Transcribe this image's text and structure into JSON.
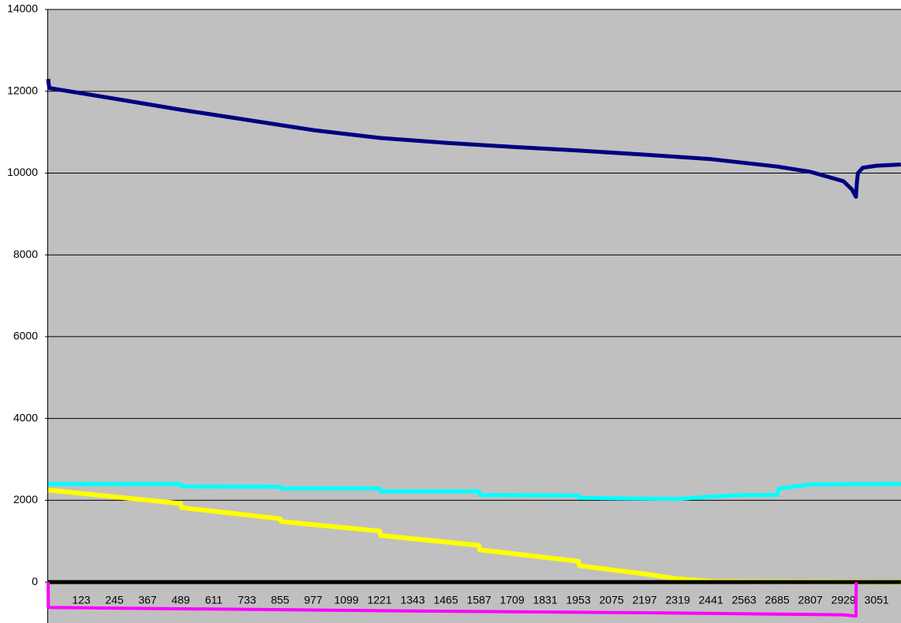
{
  "chart_data": {
    "type": "line",
    "background": "#c0c0c0",
    "grid": true,
    "xlim": [
      1,
      3140
    ],
    "ylim": [
      -1000,
      14000
    ],
    "yticks": [
      0,
      2000,
      4000,
      6000,
      8000,
      10000,
      12000,
      14000
    ],
    "xticks": [
      123,
      245,
      367,
      489,
      611,
      733,
      855,
      977,
      1099,
      1221,
      1343,
      1465,
      1587,
      1709,
      1831,
      1953,
      2075,
      2197,
      2319,
      2441,
      2563,
      2685,
      2807,
      2929,
      3051
    ],
    "series": [
      {
        "color": "#ffff00",
        "width": 6,
        "x": [
          1,
          489,
          492,
          855,
          860,
          1221,
          1225,
          1587,
          1590,
          1953,
          1957,
          2197,
          2319,
          2441,
          2560,
          3140
        ],
        "values": [
          2250,
          1920,
          1820,
          1550,
          1480,
          1250,
          1140,
          900,
          790,
          510,
          400,
          200,
          80,
          20,
          10,
          0
        ]
      },
      {
        "color": "#00ffff",
        "width": 5,
        "x": [
          1,
          489,
          495,
          855,
          860,
          1221,
          1225,
          1587,
          1590,
          1953,
          1957,
          2197,
          2319,
          2441,
          2563,
          2685,
          2690,
          2807,
          3140
        ],
        "values": [
          2400,
          2400,
          2340,
          2330,
          2290,
          2290,
          2220,
          2220,
          2130,
          2120,
          2060,
          2040,
          2030,
          2090,
          2130,
          2130,
          2280,
          2390,
          2400
        ]
      },
      {
        "color": "#000000",
        "width": 5,
        "x": [
          1,
          3140
        ],
        "values": [
          0,
          0
        ]
      },
      {
        "color": "#ff00ff",
        "width": 4,
        "x": [
          1,
          2,
          1221,
          2197,
          2929,
          2975,
          2976
        ],
        "values": [
          0,
          -620,
          -700,
          -750,
          -800,
          -830,
          0
        ]
      },
      {
        "color": "#000080",
        "width": 5,
        "x": [
          1,
          5,
          245,
          489,
          733,
          977,
          1221,
          1465,
          1709,
          1953,
          2197,
          2441,
          2685,
          2807,
          2929,
          2960,
          2975,
          2978,
          2982,
          3000,
          3051,
          3140
        ],
        "values": [
          12300,
          12080,
          11820,
          11550,
          11300,
          11050,
          10860,
          10740,
          10640,
          10550,
          10450,
          10340,
          10160,
          10030,
          9800,
          9600,
          9420,
          9750,
          10000,
          10130,
          10180,
          10210
        ]
      }
    ]
  }
}
